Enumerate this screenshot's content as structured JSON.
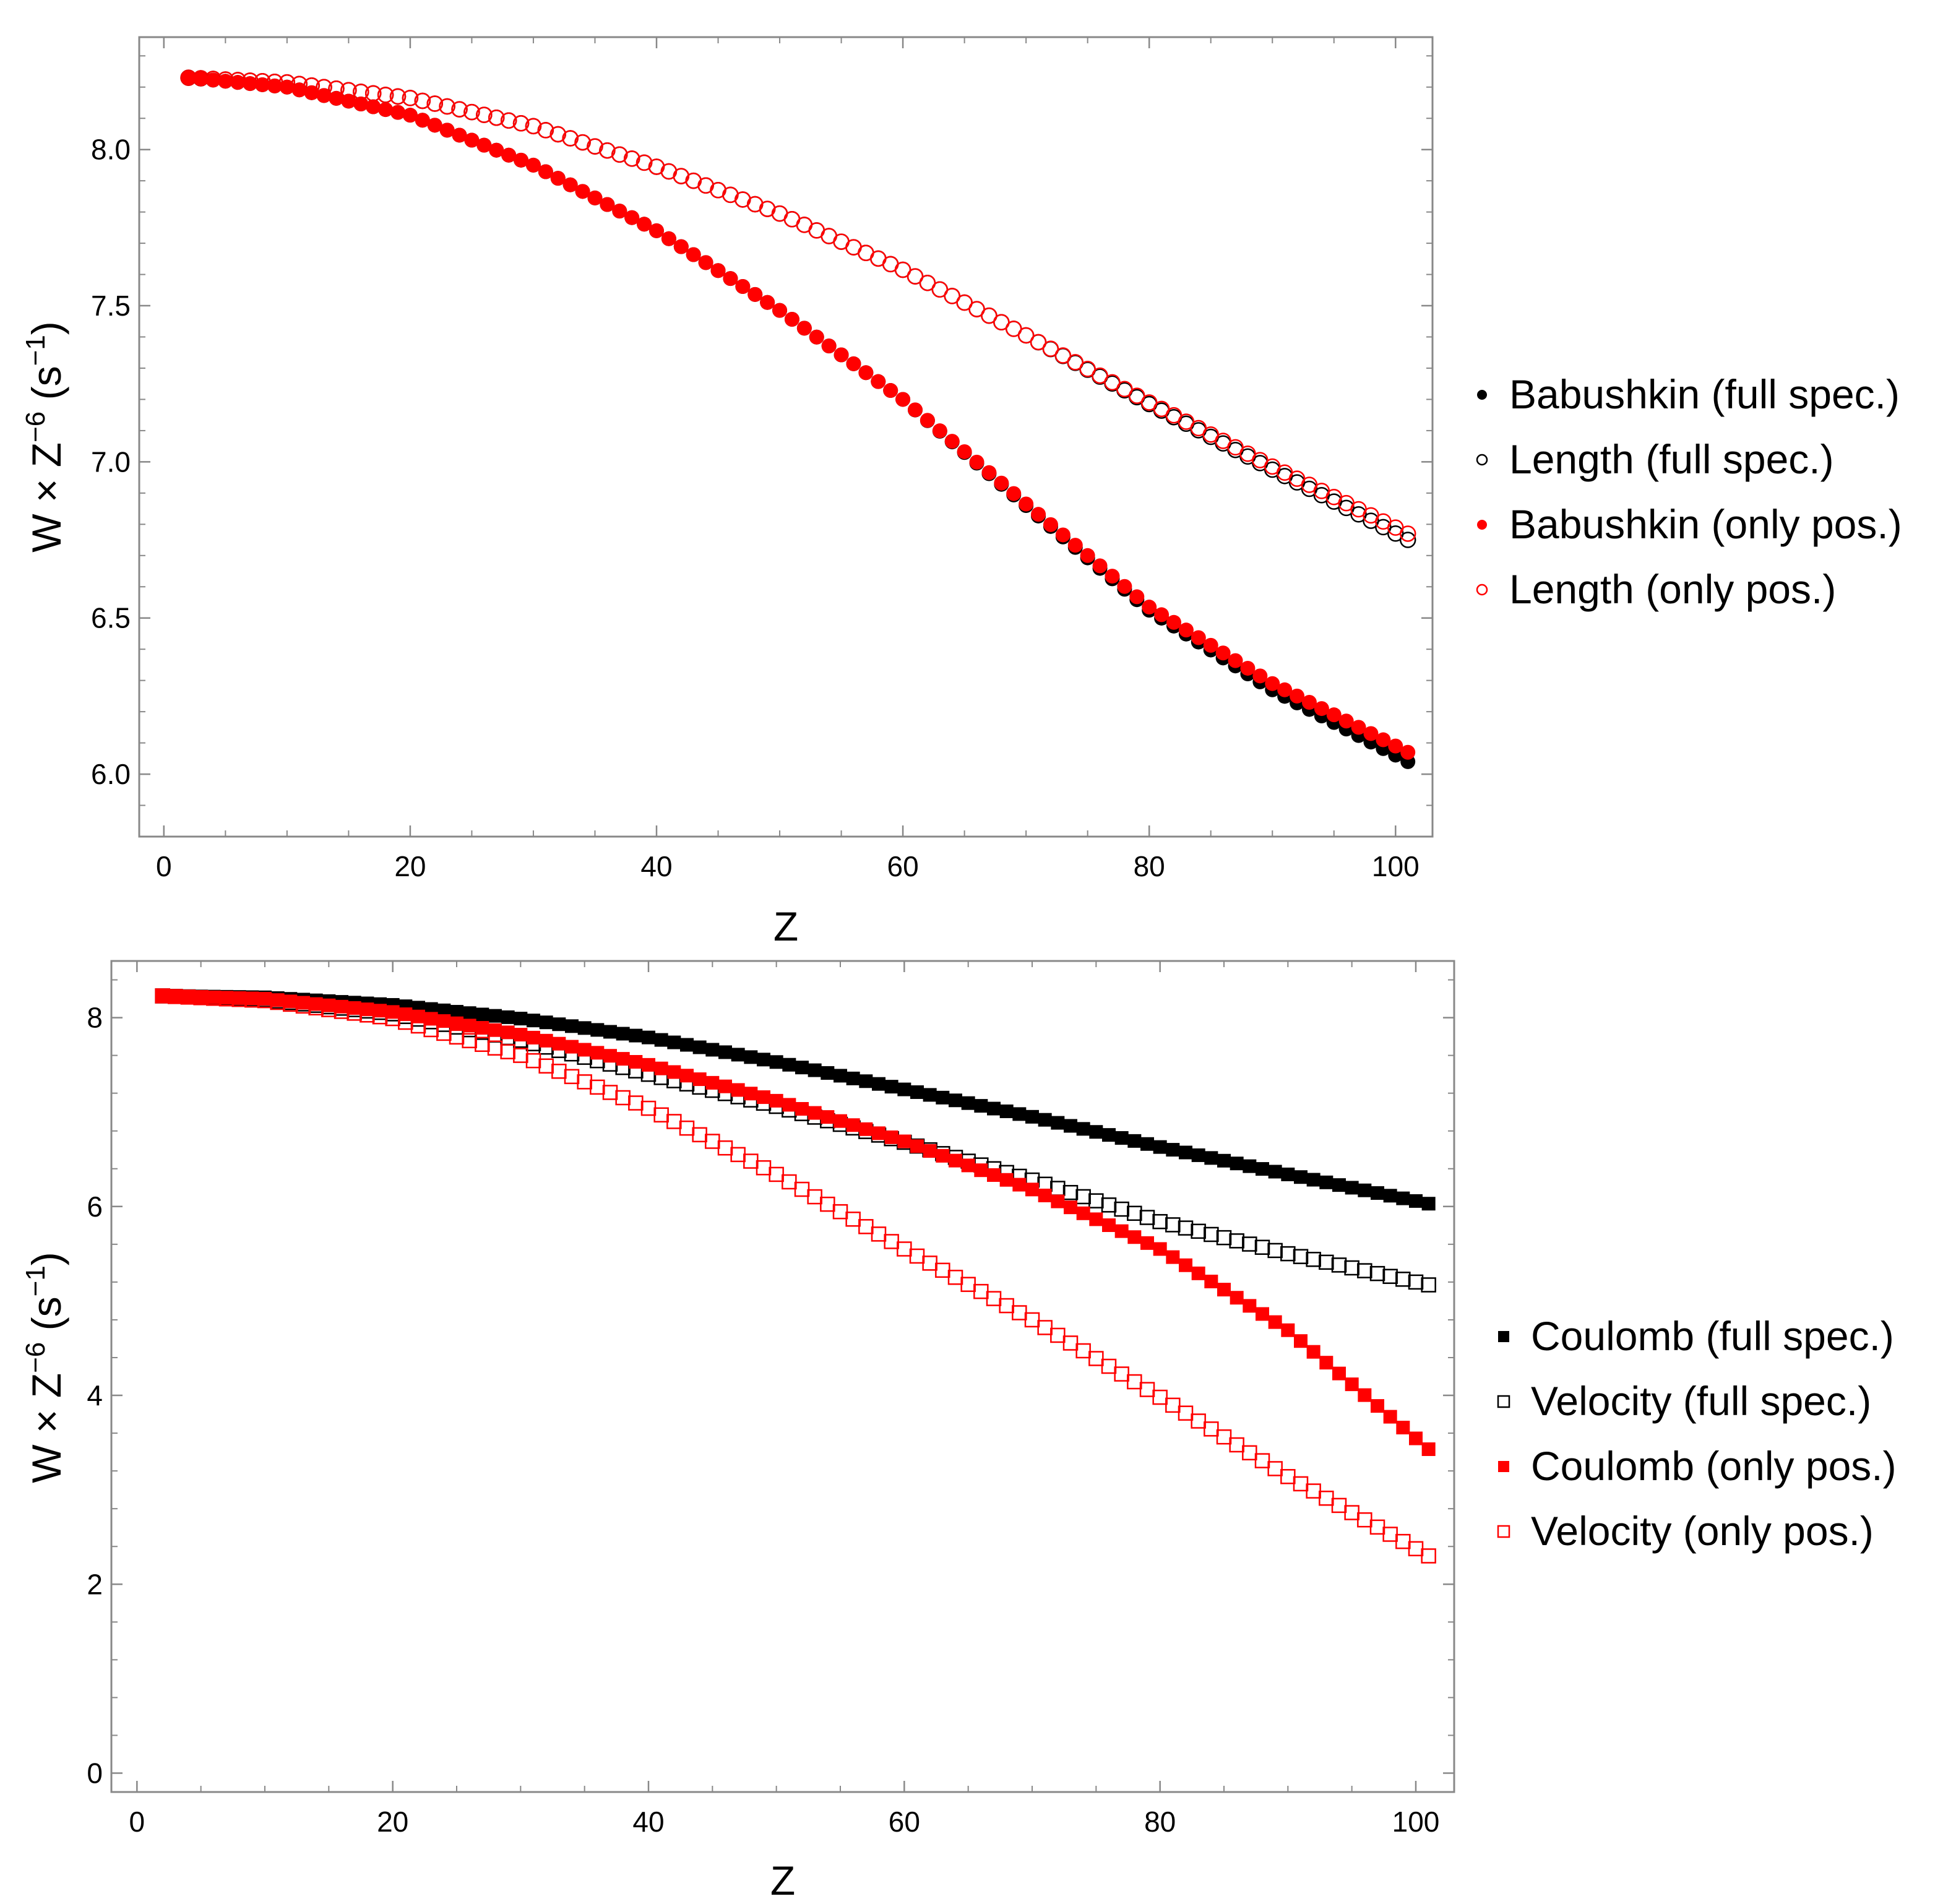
{
  "chart_data": [
    {
      "type": "scatter",
      "title": "",
      "xlabel": "Z",
      "ylabel": {
        "base": "W × Z",
        "exp1": "−6",
        "mid": " (s",
        "exp2": "−1",
        "end": ")"
      },
      "xlim": [
        -2,
        103
      ],
      "ylim": [
        5.8,
        8.36
      ],
      "xticks": [
        0,
        20,
        40,
        60,
        80,
        100
      ],
      "xtick_labels": [
        "0",
        "20",
        "40",
        "60",
        "80",
        "100"
      ],
      "yticks": [
        6.0,
        6.5,
        7.0,
        7.5,
        8.0
      ],
      "ytick_labels": [
        "6.0",
        "6.5",
        "7.0",
        "7.5",
        "8.0"
      ],
      "x": {
        "start": 2,
        "end": 101,
        "step": 1
      },
      "legend_position": "right",
      "series": [
        {
          "name": "Length (full spec.)",
          "marker": "circle-open",
          "color": "#000000",
          "curve": {
            "z": [
              2,
              10,
              20,
              30,
              40,
              50,
              60,
              70,
              80,
              90,
              101
            ],
            "y": [
              8.23,
              8.215,
              8.165,
              8.075,
              7.945,
              7.795,
              7.615,
              7.405,
              7.185,
              6.975,
              6.75
            ]
          }
        },
        {
          "name": "Length (only pos.)",
          "marker": "circle-open",
          "color": "#ff0000",
          "curve": {
            "z": [
              2,
              10,
              20,
              30,
              40,
              50,
              60,
              70,
              80,
              90,
              101
            ],
            "y": [
              8.23,
              8.215,
              8.165,
              8.075,
              7.945,
              7.795,
              7.615,
              7.405,
              7.19,
              6.985,
              6.77
            ]
          }
        },
        {
          "name": "Babushkin (full spec.)",
          "marker": "circle-filled",
          "color": "#000000",
          "curve": {
            "z": [
              2,
              10,
              20,
              30,
              40,
              50,
              60,
              70,
              80,
              90,
              101
            ],
            "y": [
              8.23,
              8.2,
              8.11,
              7.95,
              7.74,
              7.485,
              7.2,
              6.86,
              6.525,
              6.27,
              6.04
            ]
          }
        },
        {
          "name": "Babushkin (only pos.)",
          "marker": "circle-filled",
          "color": "#ff0000",
          "curve": {
            "z": [
              2,
              10,
              20,
              30,
              40,
              50,
              60,
              70,
              80,
              90,
              101
            ],
            "y": [
              8.23,
              8.2,
              8.11,
              7.95,
              7.74,
              7.485,
              7.2,
              6.865,
              6.535,
              6.29,
              6.07
            ]
          }
        }
      ],
      "legend_order": [
        "Babushkin (full spec.)",
        "Length (full spec.)",
        "Babushkin (only pos.)",
        "Length (only pos.)"
      ]
    },
    {
      "type": "scatter",
      "title": "",
      "xlabel": "Z",
      "ylabel": {
        "base": "W × Z",
        "exp1": "−6",
        "mid": " (s",
        "exp2": "−1",
        "end": ")"
      },
      "xlim": [
        -2,
        103
      ],
      "ylim": [
        -0.2,
        8.6
      ],
      "xticks": [
        0,
        20,
        40,
        60,
        80,
        100
      ],
      "xtick_labels": [
        "0",
        "20",
        "40",
        "60",
        "80",
        "100"
      ],
      "yticks": [
        0,
        2,
        4,
        6,
        8
      ],
      "ytick_labels": [
        "0",
        "2",
        "4",
        "6",
        "8"
      ],
      "x": {
        "start": 2,
        "end": 101,
        "step": 1
      },
      "legend_position": "right",
      "series": [
        {
          "name": "Coulomb (full spec.)",
          "marker": "square-filled",
          "color": "#000000",
          "curve": {
            "z": [
              2,
              10,
              20,
              30,
              40,
              50,
              60,
              70,
              80,
              90,
              101
            ],
            "y": [
              8.23,
              8.215,
              8.135,
              7.99,
              7.79,
              7.53,
              7.24,
              6.95,
              6.63,
              6.34,
              6.03
            ]
          }
        },
        {
          "name": "Velocity (full spec.)",
          "marker": "square-open",
          "color": "#000000",
          "curve": {
            "z": [
              2,
              10,
              20,
              30,
              40,
              50,
              60,
              70,
              80,
              90,
              101
            ],
            "y": [
              8.23,
              8.19,
              8.04,
              7.76,
              7.4,
              7.06,
              6.68,
              6.28,
              5.84,
              5.5,
              5.17
            ]
          }
        },
        {
          "name": "Velocity (only pos.)",
          "marker": "square-open",
          "color": "#ff0000",
          "curve": {
            "z": [
              2,
              10,
              20,
              30,
              40,
              50,
              60,
              70,
              80,
              90,
              101
            ],
            "y": [
              8.23,
              8.18,
              7.99,
              7.6,
              7.04,
              6.34,
              5.55,
              4.8,
              3.98,
              3.14,
              2.3
            ]
          }
        },
        {
          "name": "Coulomb (only pos.)",
          "marker": "square-filled",
          "color": "#ff0000",
          "curve": {
            "z": [
              2,
              10,
              20,
              30,
              40,
              50,
              60,
              70,
              80,
              90,
              101
            ],
            "y": [
              8.23,
              8.2,
              8.06,
              7.82,
              7.5,
              7.12,
              6.69,
              6.18,
              5.55,
              4.69,
              3.43
            ]
          }
        }
      ],
      "legend_order": [
        "Coulomb (full spec.)",
        "Velocity (full spec.)",
        "Coulomb (only pos.)",
        "Velocity (only pos.)"
      ]
    }
  ]
}
